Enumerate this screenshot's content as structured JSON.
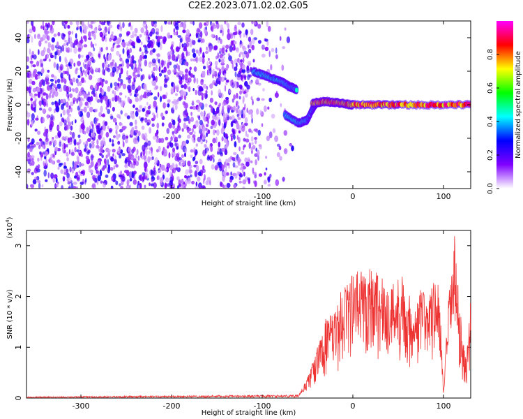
{
  "title": "C2E2.2023.071.02.02.G05",
  "chart_data": [
    {
      "type": "heatmap",
      "title": "C2E2.2023.071.02.02.G05",
      "xlabel": "Height of straight line (km)",
      "ylabel": "Frequency (Hz)",
      "xlim": [
        -360,
        130
      ],
      "ylim": [
        -50,
        50
      ],
      "xticks": [
        -300,
        -200,
        -100,
        0,
        100
      ],
      "yticks": [
        -40,
        -20,
        0,
        20,
        40
      ],
      "colorbar": {
        "label": "Normalized spectral amplitude",
        "range": [
          0,
          1
        ],
        "ticks": [
          "0.0",
          "0.2",
          "0.4",
          "0.6",
          "0.8"
        ],
        "colors": [
          "#ffffff",
          "#8000ff",
          "#0000ff",
          "#00ffff",
          "#00ff00",
          "#ffff00",
          "#ff0000",
          "#ff00ff"
        ]
      },
      "noise_region_x": [
        -360,
        -75
      ],
      "signal_tracks": [
        {
          "x": [
            -110,
            -95,
            -80,
            -70,
            -62
          ],
          "y": [
            20,
            17,
            14,
            11,
            9
          ],
          "amplitude": 0.45
        },
        {
          "x": [
            -75,
            -60,
            -50,
            -45,
            -40
          ],
          "y": [
            -6,
            -11,
            -9,
            -3,
            1
          ],
          "amplitude": 0.45
        },
        {
          "x": [
            -45,
            -30,
            -15,
            0,
            50,
            130
          ],
          "y": [
            1,
            2,
            1,
            0,
            0,
            0
          ],
          "amplitude": 0.9
        }
      ]
    },
    {
      "type": "line",
      "xlabel": "Height of straight line (km)",
      "ylabel": "SNR (10 * v/v)",
      "scale_label": "(x10",
      "scale_exp": "4",
      "scale_close": ")",
      "xlim": [
        -360,
        130
      ],
      "ylim": [
        0,
        3.3
      ],
      "xticks": [
        -300,
        -200,
        -100,
        0,
        100
      ],
      "yticks": [
        0,
        1,
        2,
        3
      ],
      "color": "#ee3333",
      "envelope": {
        "x": [
          -360,
          -60,
          -50,
          -40,
          -30,
          -20,
          -10,
          0,
          10,
          20,
          25,
          30,
          40,
          50,
          55,
          60,
          70,
          75,
          80,
          90,
          95,
          100,
          105,
          110,
          112,
          115,
          120,
          125,
          130
        ],
        "y": [
          0.02,
          0.05,
          0.4,
          0.9,
          1.5,
          1.6,
          2.2,
          2.35,
          2.45,
          2.5,
          2.55,
          2.3,
          2.1,
          2.3,
          2.35,
          2.0,
          1.75,
          2.1,
          2.0,
          2.2,
          2.3,
          0.1,
          1.8,
          2.7,
          3.1,
          2.3,
          1.4,
          0.7,
          1.9
        ]
      }
    }
  ]
}
